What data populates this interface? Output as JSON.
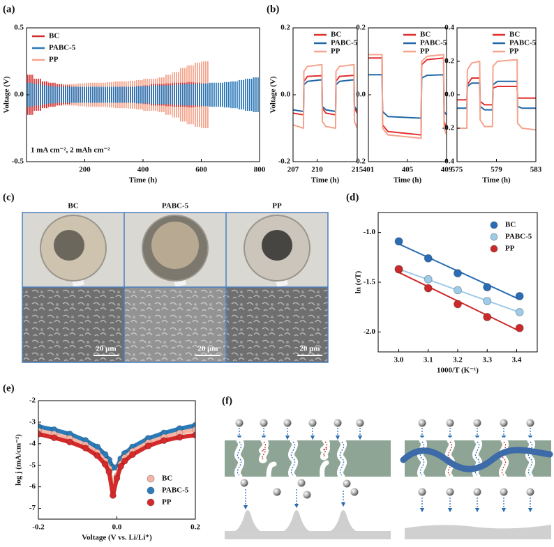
{
  "panel_labels": [
    "(a)",
    "(b)",
    "(c)",
    "(d)",
    "(e)",
    "(f)"
  ],
  "photos": {
    "labels": [
      "BC",
      "PABC-5",
      "PP"
    ],
    "scale_bars": [
      "20 μm",
      "20 μm",
      "20 μm"
    ]
  },
  "chart_data": [
    {
      "type": "envelope",
      "x_label": "Time (h)",
      "y_label": "Voltage (V)",
      "annotation": "1 mA cm⁻², 2 mAh cm⁻²",
      "xlim": [
        0,
        800
      ],
      "xticks": [
        200,
        400,
        600,
        800
      ],
      "ylim": [
        -0.5,
        0.5
      ],
      "yticks": [
        -0.5,
        {
          "value": 0,
          "label": "0.0"
        },
        0.5
      ],
      "legend": "upper left",
      "x": [
        12.5,
        37.5,
        62.5,
        87.5,
        112.5,
        137.5,
        162.5,
        187.5,
        212.5,
        237.5,
        262.5,
        287.5,
        312.5,
        337.5,
        362.5,
        387.5,
        412.5,
        437.5,
        462.5,
        487.5,
        512.5,
        537.5,
        562.5,
        587.5,
        612.5,
        637.5,
        662.5,
        687.5,
        712.5,
        737.5,
        762.5,
        787.5
      ],
      "series": [
        {
          "name": "BC",
          "color": "#d32f2f",
          "values": [
            0.15,
            0.12,
            0.1,
            0.09,
            0.08,
            0.07,
            0.06,
            0.055,
            0.05,
            0.05,
            0.05,
            0.05,
            0.055,
            0.06,
            0.06,
            0.065,
            0.07,
            0.08,
            0.08,
            0.085,
            0.09,
            0.09,
            0.095,
            0.09,
            null,
            null,
            null,
            null,
            null,
            null,
            null,
            null
          ]
        },
        {
          "name": "PABC-5",
          "color": "#2a78b8",
          "values": [
            0.09,
            0.08,
            0.07,
            0.065,
            0.06,
            0.06,
            0.06,
            0.06,
            0.06,
            0.06,
            0.06,
            0.06,
            0.06,
            0.06,
            0.06,
            0.065,
            0.065,
            0.07,
            0.07,
            0.07,
            0.075,
            0.08,
            0.08,
            0.08,
            0.085,
            0.09,
            0.09,
            0.095,
            0.1,
            0.11,
            0.12,
            0.13
          ]
        },
        {
          "name": "PP",
          "color": "#f4a38c",
          "values": [
            0.12,
            0.1,
            0.09,
            0.085,
            0.08,
            0.08,
            0.08,
            0.085,
            0.09,
            0.09,
            0.09,
            0.095,
            0.1,
            0.1,
            0.105,
            0.11,
            0.12,
            0.12,
            0.13,
            0.15,
            0.17,
            0.2,
            0.22,
            0.24,
            0.25,
            null,
            null,
            null,
            null,
            null,
            null,
            null
          ]
        }
      ],
      "draw_order": [
        2,
        0,
        1
      ]
    },
    {
      "type": "line",
      "x_label": "Time (h)",
      "y_label": "Voltage (V)",
      "legend": "upper right",
      "xlim": [
        207,
        215
      ],
      "xticks": [
        207,
        210,
        215
      ],
      "ylim": [
        -0.2,
        0.2
      ],
      "yticks": [
        -0.2,
        {
          "value": 0,
          "label": "0.0"
        },
        0.2
      ],
      "x": [
        207,
        208.3,
        208.35,
        208.8,
        210.6,
        210.65,
        211.1,
        212.3,
        212.35,
        212.8,
        214.6,
        214.65,
        215
      ],
      "series": [
        {
          "name": "BC",
          "color": "#e03030",
          "values": [
            -0.055,
            -0.06,
            0.04,
            0.055,
            0.057,
            -0.04,
            -0.055,
            -0.06,
            0.04,
            0.055,
            0.058,
            -0.04,
            -0.055
          ]
        },
        {
          "name": "PABC-5",
          "color": "#1f66a6",
          "values": [
            -0.045,
            -0.05,
            0.03,
            0.04,
            0.045,
            -0.035,
            -0.045,
            -0.05,
            0.03,
            0.04,
            0.045,
            -0.035,
            -0.047
          ]
        },
        {
          "name": "PP",
          "color": "#f4a38c",
          "values": [
            -0.09,
            -0.1,
            0.07,
            0.085,
            0.09,
            -0.08,
            -0.095,
            -0.1,
            0.07,
            0.085,
            0.09,
            -0.08,
            -0.1
          ]
        }
      ]
    },
    {
      "type": "line",
      "x_label": "Time (h)",
      "legend": "upper right",
      "xlim": [
        401,
        409
      ],
      "xticks": [
        401,
        405,
        409
      ],
      "ylim": [
        -0.2,
        0.2
      ],
      "yticks": [
        -0.2,
        {
          "value": 0,
          "label": "0.0"
        },
        0.2
      ],
      "x": [
        401,
        402.4,
        402.45,
        403,
        406.4,
        406.45,
        407,
        408.7,
        408.75,
        409
      ],
      "series": [
        {
          "name": "BC",
          "color": "#e03030",
          "values": [
            0.11,
            0.11,
            -0.09,
            -0.11,
            -0.12,
            0.09,
            0.105,
            0.11,
            -0.08,
            -0.1
          ]
        },
        {
          "name": "PABC-5",
          "color": "#1f66a6",
          "values": [
            0.06,
            0.06,
            -0.05,
            -0.065,
            -0.07,
            0.05,
            0.058,
            0.06,
            -0.05,
            -0.06
          ]
        },
        {
          "name": "PP",
          "color": "#f4a38c",
          "values": [
            0.12,
            0.12,
            -0.1,
            -0.12,
            -0.13,
            0.1,
            0.115,
            0.12,
            -0.1,
            -0.12
          ]
        }
      ]
    },
    {
      "type": "line",
      "x_label": "Time (h)",
      "legend": "upper right",
      "xlim": [
        575,
        583
      ],
      "xticks": [
        575,
        579,
        583
      ],
      "ylim": [
        -0.4,
        0.4
      ],
      "yticks": [
        -0.4,
        -0.2,
        {
          "value": 0,
          "label": "0.0"
        },
        0.2,
        0.4
      ],
      "x": [
        575,
        576,
        576.05,
        576.5,
        577.3,
        577.35,
        577.8,
        578.6,
        578.65,
        579.1,
        581.1,
        581.15,
        581.6,
        583
      ],
      "series": [
        {
          "name": "BC",
          "color": "#e03030",
          "values": [
            -0.03,
            -0.03,
            0.06,
            0.1,
            0.1,
            -0.04,
            -0.06,
            -0.06,
            0.04,
            0.05,
            0.05,
            -0.02,
            -0.02,
            -0.02
          ]
        },
        {
          "name": "PABC-5",
          "color": "#1f66a6",
          "values": [
            -0.08,
            -0.08,
            0.05,
            0.07,
            0.07,
            -0.07,
            -0.09,
            -0.09,
            0.06,
            0.08,
            0.08,
            -0.07,
            -0.08,
            -0.08
          ]
        },
        {
          "name": "PP",
          "color": "#f4a38c",
          "values": [
            -0.2,
            -0.2,
            0.15,
            0.19,
            0.2,
            -0.15,
            -0.19,
            -0.19,
            0.17,
            0.2,
            0.21,
            -0.17,
            -0.2,
            -0.21
          ]
        }
      ]
    },
    {
      "type": "scatter",
      "trendline": true,
      "x_label": "1000/T (K⁻¹)",
      "y_label": "ln (σT)",
      "legend": "upper right",
      "xlim": [
        2.93,
        3.47
      ],
      "xticks": [
        {
          "value": 3,
          "label": "3.0"
        },
        3.1,
        3.2,
        3.3,
        3.4
      ],
      "ylim": [
        -2.2,
        -0.8
      ],
      "yticks": [
        {
          "value": -2,
          "label": "-2.0"
        },
        -1.5,
        {
          "value": -1,
          "label": "-1.0"
        }
      ],
      "x": [
        3.0,
        3.1,
        3.2,
        3.3,
        3.41
      ],
      "series": [
        {
          "name": "BC",
          "color": "#2a6db5",
          "values": [
            -1.09,
            -1.26,
            -1.41,
            -1.55,
            -1.64
          ]
        },
        {
          "name": "PABC-5",
          "color": "#9dcbe8",
          "values": [
            -1.37,
            -1.47,
            -1.58,
            -1.69,
            -1.8
          ]
        },
        {
          "name": "PP",
          "color": "#cc2a2a",
          "values": [
            -1.37,
            -1.56,
            -1.72,
            -1.85,
            -1.96
          ]
        }
      ]
    },
    {
      "type": "line",
      "markers": true,
      "x_label": "Voltage (V vs. Li/Li⁺)",
      "y_label": "log j (mA/cm⁻²)",
      "legend": "lower right",
      "xlim": [
        -0.2,
        0.2
      ],
      "xticks": [
        -0.2,
        {
          "value": 0,
          "label": "0.0"
        },
        0.2
      ],
      "ylim": [
        -7.5,
        -2
      ],
      "yticks": [
        -7,
        -6,
        -5,
        -4,
        -3,
        -2
      ],
      "x": [
        -0.2,
        -0.16,
        -0.12,
        -0.08,
        -0.05,
        -0.03,
        -0.02,
        -0.01,
        0,
        0.01,
        0.02,
        0.04,
        0.08,
        0.12,
        0.16,
        0.2
      ],
      "series": [
        {
          "name": "BC",
          "color": "#f5b5a5",
          "values": [
            -3.4,
            -3.55,
            -3.75,
            -4.05,
            -4.4,
            -4.8,
            -5.15,
            -6.1,
            -5.5,
            -4.95,
            -4.65,
            -4.35,
            -3.95,
            -3.7,
            -3.5,
            -3.35
          ]
        },
        {
          "name": "PABC-5",
          "color": "#2b7bb9",
          "values": [
            -3.2,
            -3.35,
            -3.55,
            -3.85,
            -4.15,
            -4.5,
            -4.75,
            -5.1,
            -5.1,
            -4.7,
            -4.45,
            -4.15,
            -3.75,
            -3.5,
            -3.3,
            -3.15
          ]
        },
        {
          "name": "PP",
          "color": "#d42a2a",
          "values": [
            -3.55,
            -3.72,
            -3.92,
            -4.2,
            -4.55,
            -4.95,
            -5.3,
            -6.4,
            -5.6,
            -5.05,
            -4.8,
            -4.5,
            -4.1,
            -3.85,
            -3.7,
            -3.6
          ]
        }
      ],
      "draw_order": [
        1,
        0,
        2
      ]
    }
  ]
}
